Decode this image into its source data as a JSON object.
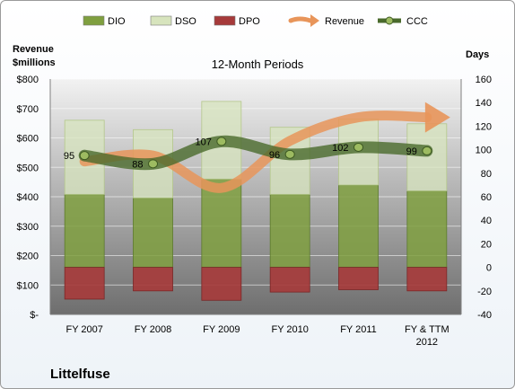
{
  "chart_data": {
    "type": "bar",
    "title": "12-Month Periods",
    "company": "Littelfuse",
    "left_axis_label": [
      "Revenue",
      "$millions"
    ],
    "right_axis_label": "Days",
    "categories": [
      [
        "FY 2007"
      ],
      [
        "FY 2008"
      ],
      [
        "FY 2009"
      ],
      [
        "FY 2010"
      ],
      [
        "FY 2011"
      ],
      [
        "FY & TTM",
        "2012"
      ]
    ],
    "left_axis": {
      "min": 0,
      "max": 800,
      "step": 100,
      "tick_labels": [
        "$-",
        "$100",
        "$200",
        "$300",
        "$400",
        "$500",
        "$600",
        "$700",
        "$800"
      ]
    },
    "right_axis": {
      "min": -40,
      "max": 160,
      "step": 20,
      "tick_labels": [
        "-40",
        "-20",
        "0",
        "20",
        "40",
        "60",
        "80",
        "100",
        "120",
        "140",
        "160"
      ]
    },
    "legend": [
      "DIO",
      "DSO",
      "DPO",
      "Revenue",
      "CCC"
    ],
    "legend_position": "top",
    "series": [
      {
        "name": "DIO",
        "kind": "stacked-bar",
        "axis": "days",
        "color": "#7f9f3f",
        "values": [
          62,
          59,
          75,
          62,
          70,
          65
        ]
      },
      {
        "name": "DSO",
        "kind": "stacked-bar",
        "axis": "days",
        "color": "#d7e4bd",
        "values": [
          63,
          58,
          66,
          57,
          56,
          57
        ]
      },
      {
        "name": "DPO",
        "kind": "bar-below-zero",
        "axis": "days",
        "color": "#a63a3a",
        "values": [
          -27,
          -20,
          -28,
          -21,
          -19,
          -20
        ]
      },
      {
        "name": "Revenue",
        "kind": "line-arrow",
        "axis": "dollars",
        "color": "#e8955a",
        "values": [
          520,
          540,
          430,
          590,
          670,
          670
        ]
      },
      {
        "name": "CCC",
        "kind": "line-markers",
        "axis": "days",
        "color": "#4a6a2c",
        "values": [
          95,
          88,
          107,
          96,
          102,
          99
        ]
      }
    ],
    "data_labels": [
      "95",
      "88",
      "107",
      "96",
      "102",
      "99"
    ]
  }
}
